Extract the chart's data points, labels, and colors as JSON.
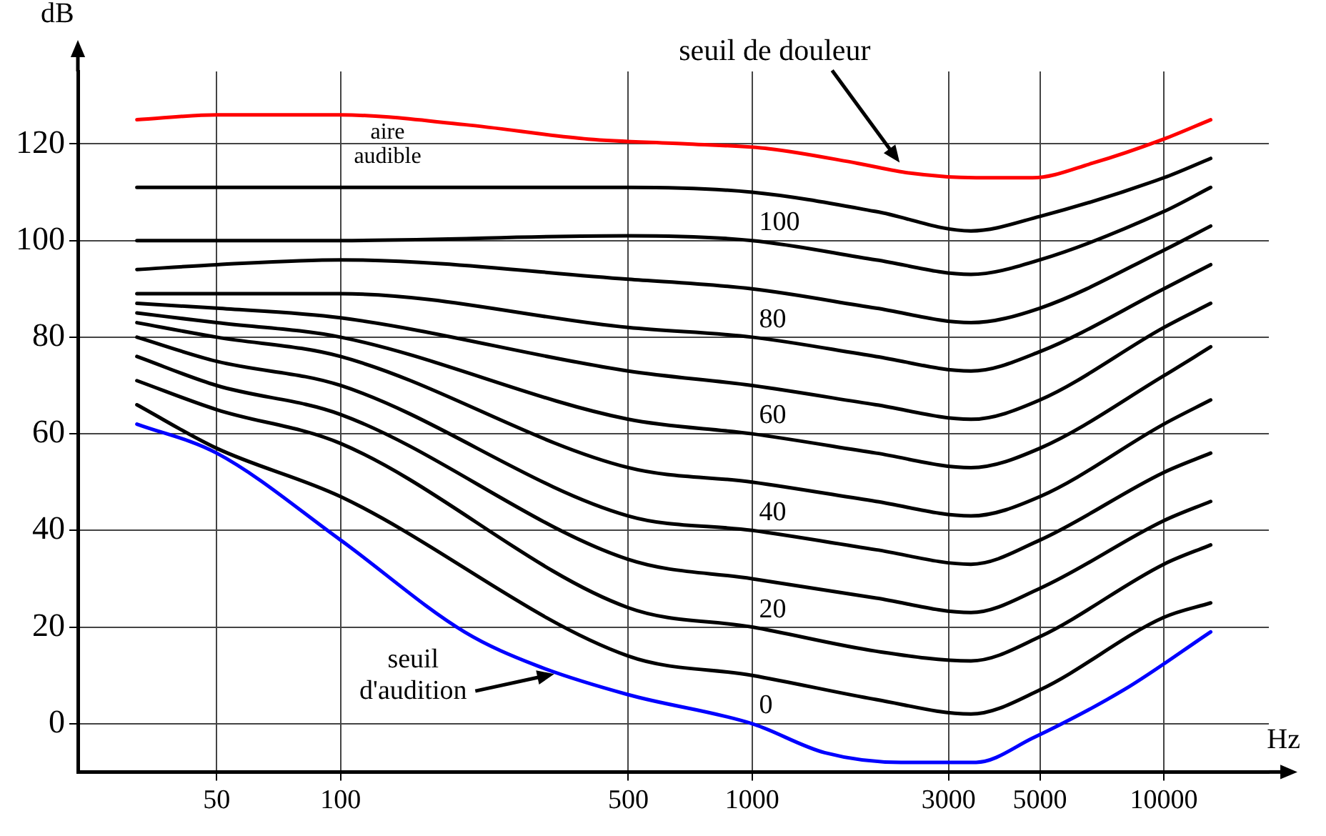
{
  "chart_data": {
    "type": "line",
    "xlabel": "Hz",
    "ylabel": "dB",
    "log": "x",
    "grid": true,
    "legend": false,
    "marker": "none",
    "line_style": "solid",
    "xlim": [
      23,
      18000
    ],
    "xticks": [
      50,
      100,
      500,
      1000,
      3000,
      5000,
      10000
    ],
    "ylim": [
      -10,
      135
    ],
    "yticks": [
      0,
      20,
      40,
      60,
      80,
      100,
      120
    ],
    "x": [
      32,
      50,
      100,
      500,
      1000,
      2000,
      3400,
      5000,
      10000,
      13000
    ],
    "series": [
      {
        "color": "#000000",
        "values": [
          66,
          57,
          47,
          14,
          10,
          5,
          2,
          7,
          22,
          25
        ]
      },
      {
        "color": "#000000",
        "values": [
          71,
          65,
          58,
          24,
          20,
          15,
          13,
          18,
          33,
          37
        ]
      },
      {
        "color": "#000000",
        "values": [
          76,
          70,
          64,
          34,
          30,
          26,
          23,
          28,
          42,
          46
        ]
      },
      {
        "color": "#000000",
        "values": [
          80,
          75,
          70,
          43,
          40,
          36,
          33,
          38,
          52,
          56
        ]
      },
      {
        "color": "#000000",
        "values": [
          83,
          80,
          76,
          53,
          50,
          46,
          43,
          47,
          62,
          67
        ]
      },
      {
        "color": "#000000",
        "values": [
          85,
          83,
          80,
          63,
          60,
          56,
          53,
          57,
          72,
          78
        ]
      },
      {
        "color": "#000000",
        "values": [
          87,
          86,
          84,
          73,
          70,
          66,
          63,
          67,
          82,
          87
        ]
      },
      {
        "color": "#000000",
        "values": [
          89,
          89,
          89,
          82,
          80,
          76,
          73,
          77,
          90,
          95
        ]
      },
      {
        "color": "#000000",
        "values": [
          94,
          95,
          96,
          92,
          90,
          86,
          83,
          86,
          98,
          103
        ]
      },
      {
        "color": "#000000",
        "values": [
          100,
          100,
          100,
          101,
          100,
          96,
          93,
          96,
          106,
          111
        ]
      },
      {
        "color": "#000000",
        "values": [
          111,
          111,
          111,
          111,
          110,
          106,
          102,
          105,
          113,
          117
        ]
      },
      {
        "color": "#ff0000",
        "x": [
          32,
          50,
          100,
          200,
          400,
          700,
          1100,
          1800,
          2400,
          3500,
          4800,
          6700,
          10000,
          13000
        ],
        "values": [
          125,
          126,
          126,
          124,
          121,
          120,
          119,
          116,
          114,
          113,
          113,
          116,
          121,
          125
        ]
      },
      {
        "color": "#0000ff",
        "x": [
          32,
          50,
          100,
          200,
          300,
          500,
          1000,
          1500,
          2300,
          3500,
          4800,
          8000,
          13000
        ],
        "values": [
          62,
          56,
          38,
          19,
          12,
          6,
          0,
          -6,
          -8,
          -8,
          -3,
          7,
          19
        ]
      }
    ],
    "annotations": [
      "seuil de douleur",
      "aire\naudible",
      "seuil\nd'audition",
      "0",
      "20",
      "40",
      "60",
      "80",
      "100"
    ]
  }
}
